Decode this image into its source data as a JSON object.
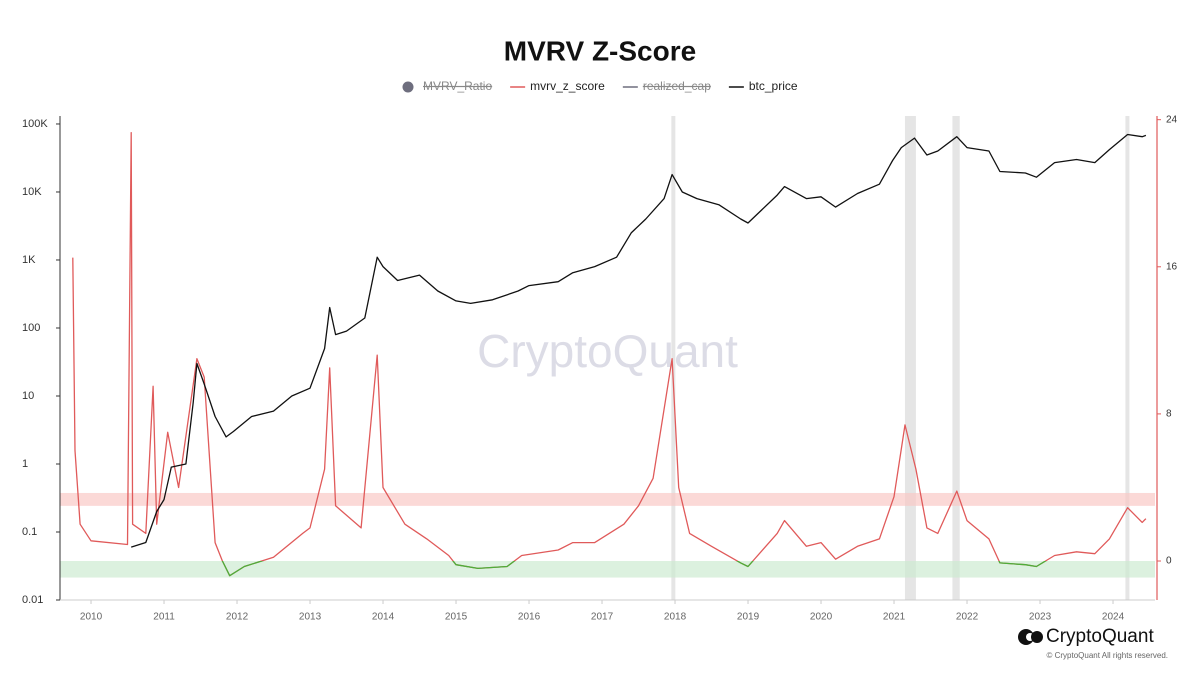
{
  "chart_data": {
    "type": "line",
    "title": "MVRV Z-Score",
    "xlim": [
      2009.575,
      2024.575
    ],
    "xticks": [
      2010,
      2011,
      2012,
      2013,
      2014,
      2015,
      2016,
      2017,
      2018,
      2019,
      2020,
      2021,
      2022,
      2023,
      2024
    ],
    "ylog": true,
    "ylim": [
      0.01,
      131000
    ],
    "yticks": [
      {
        "value": 100000,
        "label": "100K"
      },
      {
        "value": 10000,
        "label": "10K"
      },
      {
        "value": 1000,
        "label": "1K"
      },
      100,
      10,
      1,
      0.1,
      0.01
    ],
    "y2lim": [
      -2.12,
      24.2
    ],
    "y2ticks": [
      0,
      8,
      16,
      24
    ],
    "y2_axis_color": "#e05a5a",
    "bands": [
      {
        "axis": "y2",
        "range": [
          3.0,
          3.7
        ],
        "color": "#f9c9c6"
      },
      {
        "axis": "y2",
        "range": [
          -0.9,
          0
        ],
        "color": "#cdebd2"
      }
    ],
    "highlight_ranges": [
      [
        2017.95,
        2018.0
      ],
      [
        2021.15,
        2021.3
      ],
      [
        2021.8,
        2021.9
      ],
      [
        2024.17,
        2024.22
      ]
    ],
    "highlight_color": "#dcdcdc",
    "watermark": "CryptoQuant",
    "series": [
      {
        "name": "MVRV_Ratio",
        "color": "#6e6e7e",
        "marker": "circle",
        "hidden": true
      },
      {
        "name": "mvrv_z_score",
        "color": "#e05a5a",
        "axis": "y2",
        "below_zero_color": "#4caf3a",
        "x": [
          2009.75,
          2009.78,
          2009.85,
          2010.0,
          2010.5,
          2010.55,
          2010.57,
          2010.75,
          2010.85,
          2010.9,
          2011.05,
          2011.2,
          2011.45,
          2011.55,
          2011.7,
          2011.8,
          2011.9,
          2012.1,
          2012.5,
          2012.9,
          2013.0,
          2013.2,
          2013.27,
          2013.35,
          2013.7,
          2013.92,
          2014.0,
          2014.3,
          2014.6,
          2014.9,
          2015.0,
          2015.3,
          2015.7,
          2015.9,
          2016.4,
          2016.6,
          2016.9,
          2017.3,
          2017.5,
          2017.7,
          2017.96,
          2018.05,
          2018.2,
          2018.5,
          2018.9,
          2019.0,
          2019.4,
          2019.5,
          2019.8,
          2020.0,
          2020.2,
          2020.5,
          2020.8,
          2021.0,
          2021.15,
          2021.3,
          2021.45,
          2021.6,
          2021.86,
          2022.0,
          2022.3,
          2022.45,
          2022.8,
          2022.95,
          2023.2,
          2023.5,
          2023.75,
          2023.95,
          2024.2,
          2024.4,
          2024.45
        ],
        "values": [
          16.5,
          6,
          2,
          1.1,
          0.9,
          23.3,
          2,
          1.5,
          9.5,
          2,
          7,
          4,
          11,
          10,
          1,
          0,
          -0.8,
          -0.3,
          0.2,
          1.5,
          1.8,
          5,
          10.5,
          3,
          1.8,
          11.2,
          4,
          2,
          1.2,
          0.3,
          -0.2,
          -0.4,
          -0.3,
          0.3,
          0.6,
          1.0,
          1.0,
          2,
          3,
          4.5,
          11,
          4,
          1.5,
          0.8,
          -0.1,
          -0.3,
          1.5,
          2.2,
          0.8,
          1.0,
          0.1,
          0.8,
          1.2,
          3.5,
          7.4,
          5,
          1.8,
          1.5,
          3.8,
          2.2,
          1.2,
          -0.1,
          -0.2,
          -0.3,
          0.3,
          0.5,
          0.4,
          1.2,
          2.9,
          2.1,
          2.3
        ]
      },
      {
        "name": "realized_cap",
        "color": "#6e6e7e",
        "hidden": true
      },
      {
        "name": "btc_price",
        "color": "#111111",
        "x": [
          2010.55,
          2010.75,
          2010.9,
          2011.0,
          2011.1,
          2011.3,
          2011.4,
          2011.45,
          2011.55,
          2011.7,
          2011.85,
          2011.95,
          2012.2,
          2012.5,
          2012.75,
          2013.0,
          2013.2,
          2013.27,
          2013.35,
          2013.5,
          2013.75,
          2013.92,
          2014.0,
          2014.2,
          2014.5,
          2014.75,
          2015.0,
          2015.2,
          2015.5,
          2015.85,
          2016.0,
          2016.4,
          2016.6,
          2016.9,
          2017.2,
          2017.4,
          2017.6,
          2017.85,
          2017.96,
          2018.1,
          2018.3,
          2018.6,
          2018.9,
          2019.0,
          2019.4,
          2019.5,
          2019.8,
          2020.0,
          2020.2,
          2020.5,
          2020.8,
          2020.98,
          2021.1,
          2021.28,
          2021.45,
          2021.6,
          2021.86,
          2022.0,
          2022.3,
          2022.45,
          2022.8,
          2022.95,
          2023.2,
          2023.5,
          2023.75,
          2023.95,
          2024.2,
          2024.4,
          2024.45
        ],
        "values": [
          0.06,
          0.07,
          0.2,
          0.3,
          0.9,
          1.0,
          8,
          30,
          15,
          5,
          2.5,
          3,
          5,
          6,
          10,
          13,
          50,
          200,
          80,
          90,
          140,
          1100,
          800,
          500,
          600,
          350,
          250,
          230,
          260,
          350,
          420,
          480,
          650,
          800,
          1100,
          2500,
          4000,
          8000,
          18000,
          10000,
          8000,
          6500,
          4000,
          3500,
          9000,
          12000,
          8000,
          8500,
          6000,
          9500,
          13000,
          29000,
          45000,
          62000,
          35000,
          40000,
          65000,
          45000,
          40000,
          20000,
          19000,
          16500,
          27000,
          30000,
          27000,
          42000,
          70000,
          65000,
          68000
        ]
      }
    ],
    "footer": {
      "brand": "CryptoQuant",
      "copyright": "© CryptoQuant All rights reserved."
    }
  }
}
